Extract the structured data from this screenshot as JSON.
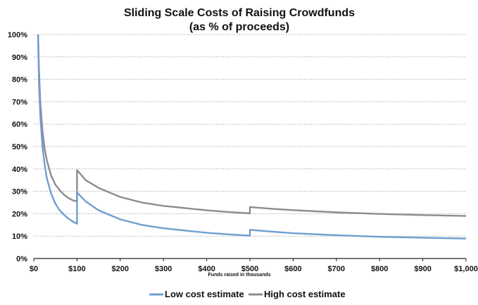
{
  "chart_data": {
    "type": "line",
    "title": "Sliding Scale Costs of Raising Crowdfunds",
    "subtitle": "(as % of proceeds)",
    "xlabel": "Funds raised in thousands",
    "ylabel": "",
    "xlim": [
      0,
      1000
    ],
    "ylim": [
      0,
      100
    ],
    "grid": true,
    "legend_position": "bottom-center",
    "x_ticks": [
      0,
      100,
      200,
      300,
      400,
      500,
      600,
      700,
      800,
      900,
      1000
    ],
    "x_tick_labels": [
      "$0",
      "$100",
      "$200",
      "$300",
      "$400",
      "$500",
      "$600",
      "$700",
      "$800",
      "$900",
      "$1,000"
    ],
    "y_ticks": [
      0,
      10,
      20,
      30,
      40,
      50,
      60,
      70,
      80,
      90,
      100
    ],
    "y_tick_labels": [
      "0%",
      "10%",
      "20%",
      "30%",
      "40%",
      "50%",
      "60%",
      "70%",
      "80%",
      "90%",
      "100%"
    ],
    "series": [
      {
        "name": "Low cost estimate",
        "color": "#6d9fd0",
        "x": [
          10,
          12,
          15,
          20,
          25,
          30,
          40,
          50,
          60,
          70,
          80,
          90,
          100,
          100,
          120,
          150,
          200,
          250,
          300,
          350,
          400,
          450,
          500,
          500,
          550,
          600,
          700,
          800,
          900,
          1000
        ],
        "y": [
          100,
          78,
          64,
          50,
          42,
          36,
          29,
          24.5,
          21.5,
          19.5,
          17.8,
          16.5,
          15.5,
          29.5,
          25.5,
          21.5,
          17.5,
          15,
          13.5,
          12.5,
          11.5,
          10.8,
          10.2,
          12.8,
          12,
          11.3,
          10.4,
          9.7,
          9.3,
          8.9
        ]
      },
      {
        "name": "High cost estimate",
        "color": "#8c8c8c",
        "x": [
          10,
          12,
          15,
          20,
          25,
          30,
          40,
          50,
          60,
          70,
          80,
          90,
          100,
          100,
          120,
          150,
          200,
          250,
          300,
          350,
          400,
          450,
          500,
          500,
          550,
          600,
          700,
          800,
          900,
          1000
        ],
        "y": [
          100,
          84,
          70,
          57,
          49,
          44,
          37,
          33,
          30.5,
          28.5,
          27,
          26,
          25.5,
          39.5,
          35,
          31.5,
          27.5,
          25,
          23.5,
          22.5,
          21.5,
          20.8,
          20.2,
          23,
          22.2,
          21.6,
          20.6,
          19.9,
          19.4,
          19
        ]
      }
    ]
  }
}
